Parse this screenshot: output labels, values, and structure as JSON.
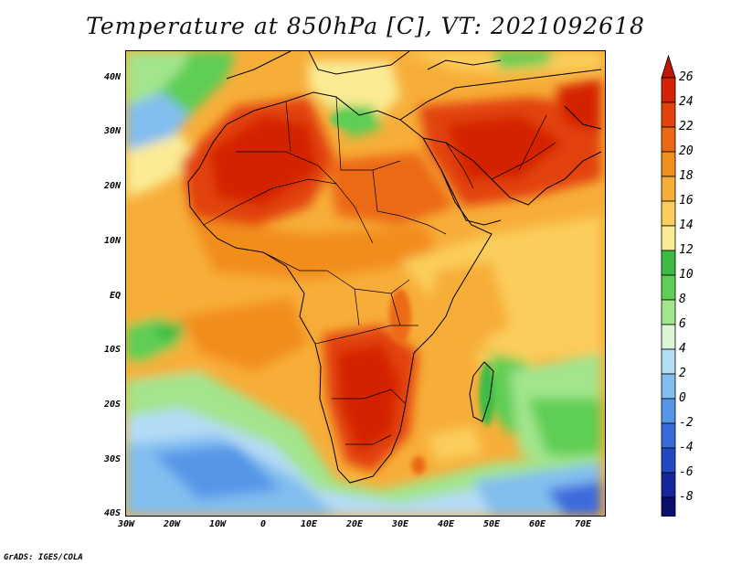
{
  "title": "Temperature at 850hPa [C], VT: 2021092618",
  "footer": "GrADS: IGES/COLA",
  "y_ticks": [
    "40N",
    "30N",
    "20N",
    "10N",
    "EQ",
    "10S",
    "20S",
    "30S",
    "40S"
  ],
  "x_ticks": [
    "30W",
    "20W",
    "10W",
    "0",
    "10E",
    "20E",
    "30E",
    "40E",
    "50E",
    "60E",
    "70E"
  ],
  "colorbar": {
    "labels": [
      "26",
      "24",
      "22",
      "20",
      "18",
      "16",
      "14",
      "12",
      "10",
      "8",
      "6",
      "4",
      "2",
      "0",
      "-2",
      "-4",
      "-6",
      "-8"
    ],
    "colors": [
      "#d42406",
      "#e2430b",
      "#ec6913",
      "#f28d1f",
      "#f7ae39",
      "#fbcd5c",
      "#fbeb94",
      "#3cbb45",
      "#5fce55",
      "#a2e58c",
      "#dcf5d6",
      "#b4dcf5",
      "#82beef",
      "#5596e8",
      "#3a6bdc",
      "#2448c4",
      "#16259e",
      "#0a0f6e"
    ],
    "over_color": "#c01806",
    "under_color": "#d9d9fb"
  }
}
